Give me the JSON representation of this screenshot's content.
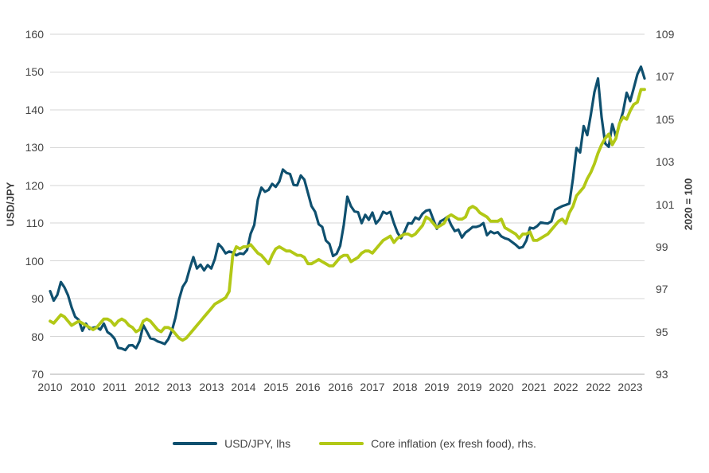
{
  "chart_data": {
    "type": "line",
    "title": "",
    "frequency": "monthly",
    "x_start": "2010-01",
    "x_end": "2023-11",
    "grid": "horizontal",
    "legend_position": "bottom",
    "x_tick_labels": [
      "2010",
      "2010",
      "2011",
      "2012",
      "2013",
      "2013",
      "2014",
      "2015",
      "2016",
      "2016",
      "2017",
      "2018",
      "2019",
      "2019",
      "2020",
      "2021",
      "2022",
      "2022",
      "2023"
    ],
    "x_tick_month_indices": [
      0,
      9,
      18,
      27,
      36,
      45,
      54,
      63,
      72,
      81,
      90,
      99,
      108,
      117,
      126,
      135,
      144,
      153,
      162
    ],
    "left_axis": {
      "label": "USD/JPY",
      "min": 70,
      "max": 160,
      "tick_step": 10,
      "tick_labels": [
        "160",
        "150",
        "140",
        "130",
        "120",
        "110",
        "100",
        "90",
        "80",
        "70"
      ]
    },
    "right_axis": {
      "label": "2020 = 100",
      "min": 93,
      "max": 109,
      "tick_step": 2,
      "tick_labels": [
        "109",
        "107",
        "105",
        "103",
        "101",
        "99",
        "97",
        "95",
        "93"
      ]
    },
    "series": [
      {
        "name": "USD/JPY, lhs",
        "axis": "left",
        "color": "#0F506F",
        "values": [
          92.0,
          89.5,
          91.0,
          94.4,
          93.0,
          90.9,
          87.7,
          85.2,
          84.4,
          81.5,
          83.4,
          82.0,
          82.3,
          82.5,
          81.8,
          83.4,
          81.2,
          80.5,
          79.4,
          77.0,
          76.8,
          76.4,
          77.6,
          77.7,
          76.9,
          78.8,
          83.0,
          81.3,
          79.5,
          79.3,
          78.7,
          78.4,
          78.0,
          79.3,
          81.5,
          85.0,
          89.8,
          93.1,
          94.6,
          98.0,
          101.0,
          98.0,
          99.0,
          97.5,
          98.9,
          98.0,
          100.5,
          104.5,
          103.5,
          102.0,
          102.5,
          102.2,
          101.5,
          102.0,
          101.8,
          102.9,
          107.2,
          109.5,
          116.2,
          119.4,
          118.3,
          118.8,
          120.4,
          119.6,
          121.0,
          124.2,
          123.3,
          123.0,
          120.1,
          120.0,
          122.6,
          121.5,
          118.0,
          114.5,
          113.0,
          109.7,
          109.0,
          105.4,
          104.5,
          101.3,
          101.9,
          104.0,
          109.5,
          117.0,
          114.5,
          113.1,
          112.9,
          110.0,
          112.2,
          110.9,
          112.8,
          109.9,
          111.0,
          113.0,
          112.5,
          113.0,
          110.0,
          107.5,
          106.0,
          107.8,
          110.0,
          109.9,
          111.5,
          111.0,
          112.5,
          113.3,
          113.5,
          111.0,
          108.5,
          110.5,
          111.0,
          111.7,
          109.5,
          107.9,
          108.3,
          106.2,
          107.5,
          108.2,
          109.0,
          109.0,
          109.3,
          110.0,
          106.8,
          107.8,
          107.3,
          107.6,
          106.5,
          106.0,
          105.7,
          105.0,
          104.3,
          103.4,
          103.7,
          105.4,
          108.8,
          108.6,
          109.2,
          110.2,
          110.0,
          109.9,
          110.5,
          113.5,
          114.0,
          114.5,
          114.8,
          115.2,
          121.7,
          129.9,
          128.7,
          135.7,
          133.3,
          138.7,
          144.7,
          148.3,
          138.1,
          131.1,
          130.2,
          136.2,
          132.9,
          136.3,
          139.5,
          144.5,
          142.3,
          145.8,
          149.4,
          151.4,
          148.3
        ]
      },
      {
        "name": "Core inflation (ex fresh food), rhs.",
        "axis": "right",
        "color": "#B2C816",
        "values": [
          95.5,
          95.4,
          95.6,
          95.8,
          95.7,
          95.5,
          95.3,
          95.4,
          95.5,
          95.4,
          95.3,
          95.2,
          95.1,
          95.2,
          95.4,
          95.6,
          95.6,
          95.5,
          95.3,
          95.5,
          95.6,
          95.5,
          95.3,
          95.2,
          95.0,
          95.1,
          95.5,
          95.6,
          95.5,
          95.3,
          95.1,
          95.0,
          95.2,
          95.2,
          95.1,
          94.9,
          94.7,
          94.6,
          94.7,
          94.9,
          95.1,
          95.3,
          95.5,
          95.7,
          95.9,
          96.1,
          96.3,
          96.4,
          96.5,
          96.6,
          96.9,
          98.6,
          99.0,
          98.9,
          99.0,
          99.0,
          99.1,
          98.9,
          98.7,
          98.6,
          98.4,
          98.2,
          98.6,
          98.9,
          99.0,
          98.9,
          98.8,
          98.8,
          98.7,
          98.6,
          98.6,
          98.5,
          98.2,
          98.2,
          98.3,
          98.4,
          98.3,
          98.2,
          98.1,
          98.1,
          98.3,
          98.5,
          98.6,
          98.6,
          98.3,
          98.4,
          98.5,
          98.7,
          98.8,
          98.8,
          98.7,
          98.9,
          99.1,
          99.3,
          99.4,
          99.5,
          99.2,
          99.4,
          99.5,
          99.6,
          99.6,
          99.5,
          99.6,
          99.8,
          100.0,
          100.4,
          100.3,
          100.1,
          99.9,
          100.0,
          100.1,
          100.4,
          100.5,
          100.4,
          100.3,
          100.3,
          100.4,
          100.8,
          100.9,
          100.8,
          100.6,
          100.5,
          100.4,
          100.2,
          100.2,
          100.2,
          100.3,
          99.9,
          99.8,
          99.7,
          99.6,
          99.4,
          99.6,
          99.6,
          99.7,
          99.3,
          99.3,
          99.4,
          99.5,
          99.6,
          99.8,
          100.0,
          100.2,
          100.3,
          100.1,
          100.6,
          100.9,
          101.4,
          101.6,
          101.8,
          102.2,
          102.5,
          102.9,
          103.4,
          103.8,
          104.1,
          104.3,
          103.8,
          104.1,
          104.8,
          105.1,
          105.0,
          105.4,
          105.7,
          105.8,
          106.4,
          106.4
        ]
      }
    ]
  },
  "colors": {
    "grid": "#D6D6D6",
    "axis_line": "#ABABAB",
    "text": "#404040",
    "background": "#FFFFFF"
  }
}
